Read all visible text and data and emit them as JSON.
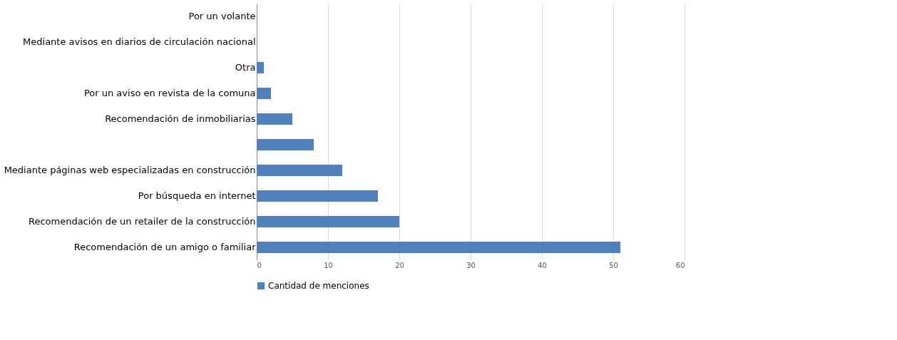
{
  "chart_data": {
    "type": "bar",
    "orientation": "horizontal",
    "categories": [
      "Por un volante",
      "Mediante avisos en diarios de circulación nacional",
      "Otra",
      "Por un aviso en revista de la comuna",
      "Recomendación de inmobiliarias",
      null,
      "Mediante páginas web especializadas en construcción",
      "Por búsqueda en internet",
      "Recomendación de un retailer de la construcción",
      "Recomendación de un amigo o familiar"
    ],
    "series": [
      {
        "name": "Cantidad de menciones",
        "color": "#4f81bd",
        "values": [
          0,
          0,
          1,
          2,
          5,
          8,
          12,
          17,
          20,
          51
        ]
      }
    ],
    "xlim": [
      0,
      60
    ],
    "xticks": [
      0,
      10,
      20,
      30,
      40,
      50,
      60
    ],
    "grid": "x",
    "legend": "bottom"
  }
}
